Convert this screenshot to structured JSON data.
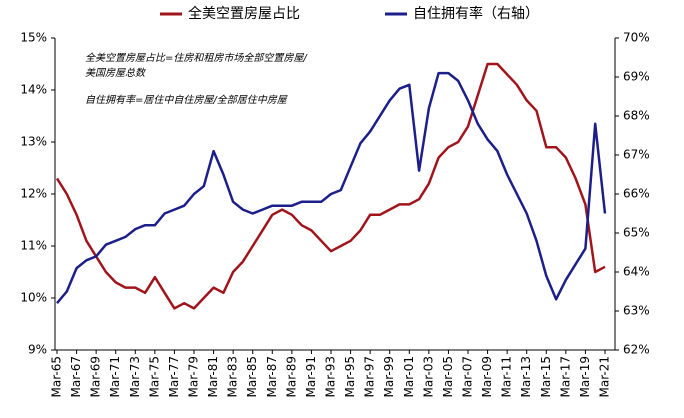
{
  "chart_data": {
    "type": "line",
    "categories": [
      "Mar-65",
      null,
      "Mar-67",
      null,
      "Mar-69",
      null,
      "Mar-71",
      null,
      "Mar-73",
      null,
      "Mar-75",
      null,
      "Mar-77",
      null,
      "Mar-79",
      null,
      "Mar-81",
      null,
      "Mar-83",
      null,
      "Mar-85",
      null,
      "Mar-87",
      null,
      "Mar-89",
      null,
      "Mar-91",
      null,
      "Mar-93",
      null,
      "Mar-95",
      null,
      "Mar-97",
      null,
      "Mar-99",
      null,
      "Mar-01",
      null,
      "Mar-03",
      null,
      "Mar-05",
      null,
      "Mar-07",
      null,
      "Mar-09",
      null,
      "Mar-11",
      null,
      "Mar-13",
      null,
      "Mar-15",
      null,
      "Mar-17",
      null,
      "Mar-19",
      null,
      "Mar-21"
    ],
    "series": [
      {
        "name": "全美空置房屋占比",
        "color": "#a0151c",
        "values": [
          12.3,
          12.0,
          11.6,
          11.1,
          10.8,
          10.5,
          10.3,
          10.2,
          10.2,
          10.1,
          10.4,
          10.1,
          9.8,
          9.9,
          9.8,
          10.0,
          10.2,
          10.1,
          10.5,
          10.7,
          11.0,
          11.3,
          11.6,
          11.7,
          11.6,
          11.4,
          11.3,
          11.1,
          10.9,
          11.0,
          11.1,
          11.3,
          11.6,
          11.6,
          11.7,
          11.8,
          11.8,
          11.9,
          12.2,
          12.7,
          12.9,
          13.0,
          13.3,
          13.9,
          14.5,
          14.5,
          14.3,
          14.1,
          13.8,
          13.6,
          12.9,
          12.9,
          12.7,
          12.3,
          11.8,
          10.5,
          10.6
        ]
      },
      {
        "name": "自住拥有率（右轴）",
        "color": "#1c1f8a",
        "axis": "y2",
        "values": [
          63.2,
          63.5,
          64.1,
          64.3,
          64.4,
          64.7,
          64.8,
          64.9,
          65.1,
          65.2,
          65.2,
          65.5,
          65.6,
          65.7,
          66.0,
          66.2,
          67.1,
          66.5,
          65.8,
          65.6,
          65.5,
          65.6,
          65.7,
          65.7,
          65.7,
          65.8,
          65.8,
          65.8,
          66.0,
          66.1,
          66.7,
          67.3,
          67.6,
          68.0,
          68.4,
          68.7,
          68.8,
          66.6,
          68.2,
          69.1,
          69.1,
          68.9,
          68.4,
          67.8,
          67.4,
          67.1,
          66.5,
          66.0,
          65.5,
          64.8,
          63.9,
          63.3,
          63.8,
          64.2,
          64.6,
          67.8,
          65.5
        ]
      }
    ],
    "ylim": [
      9,
      15
    ],
    "yticks": [
      {
        "value": 9,
        "label": "9%"
      },
      {
        "value": 10,
        "label": "10%"
      },
      {
        "value": 11,
        "label": "11%"
      },
      {
        "value": 12,
        "label": "12%"
      },
      {
        "value": 13,
        "label": "13%"
      },
      {
        "value": 14,
        "label": "14%"
      },
      {
        "value": 15,
        "label": "15%"
      }
    ],
    "y2lim": [
      62,
      70
    ],
    "y2ticks": [
      {
        "value": 62,
        "label": "62%"
      },
      {
        "value": 63,
        "label": "63%"
      },
      {
        "value": 64,
        "label": "64%"
      },
      {
        "value": 65,
        "label": "65%"
      },
      {
        "value": 66,
        "label": "66%"
      },
      {
        "value": 67,
        "label": "67%"
      },
      {
        "value": 68,
        "label": "68%"
      },
      {
        "value": 69,
        "label": "69%"
      },
      {
        "value": 70,
        "label": "70%"
      }
    ],
    "annotations": [
      "全美空置房屋占比=住房和租房市场全部空置房屋/",
      "美国房屋总数",
      "自住拥有率=居住中自住房屋/全部居住中房屋"
    ],
    "legend": "top"
  }
}
